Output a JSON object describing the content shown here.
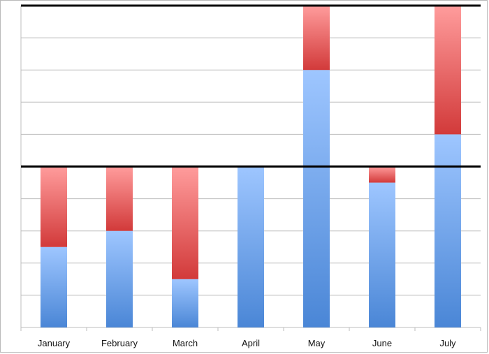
{
  "chart_data": {
    "type": "bar",
    "stacked": true,
    "categories": [
      "January",
      "February",
      "March",
      "April",
      "May",
      "June",
      "July"
    ],
    "series": [
      {
        "color_top": "#9ec6ff",
        "color_bottom": "#4a86d6",
        "values": [
          2.5,
          3.0,
          1.5,
          5.0,
          8.0,
          4.5,
          6.0
        ]
      },
      {
        "color_top": "#ff9c9c",
        "color_bottom": "#d23a3a",
        "values": [
          2.5,
          2.0,
          3.5,
          0.0,
          2.0,
          0.5,
          4.0
        ]
      }
    ],
    "ylim": [
      0,
      10
    ],
    "grid": true,
    "reference_lines": [
      5,
      10
    ],
    "title": "",
    "xlabel": "",
    "ylabel": ""
  }
}
